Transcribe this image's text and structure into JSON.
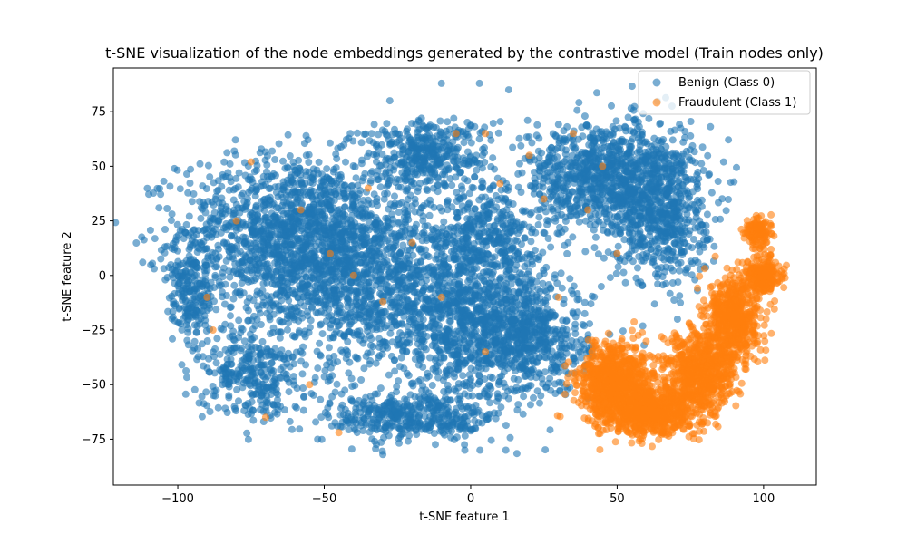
{
  "chart_data": {
    "type": "scatter",
    "title": "t-SNE visualization of the node embeddings generated by the contrastive model (Train nodes only)",
    "xlabel": "t-SNE feature 1",
    "ylabel": "t-SNE feature 2",
    "xlim": [
      -122,
      118
    ],
    "ylim": [
      -96,
      95
    ],
    "xticks": [
      -100,
      -50,
      0,
      50,
      100
    ],
    "yticks": [
      -75,
      -50,
      -25,
      0,
      25,
      50,
      75
    ],
    "grid": false,
    "legend_position": "top-right",
    "series": [
      {
        "name": "Benign (Class 0)",
        "color": "#1f77b4",
        "alpha": 0.6,
        "clusters": [
          {
            "cx": -60,
            "cy": 20,
            "sx": 28,
            "sy": 25,
            "n": 1400
          },
          {
            "cx": -35,
            "cy": -5,
            "sx": 30,
            "sy": 30,
            "n": 1100
          },
          {
            "cx": 0,
            "cy": -20,
            "sx": 22,
            "sy": 25,
            "n": 900
          },
          {
            "cx": 20,
            "cy": -30,
            "sx": 15,
            "sy": 18,
            "n": 500
          },
          {
            "cx": 45,
            "cy": 45,
            "sx": 20,
            "sy": 18,
            "n": 900
          },
          {
            "cx": 65,
            "cy": 30,
            "sx": 12,
            "sy": 25,
            "n": 600
          },
          {
            "cx": -15,
            "cy": 55,
            "sx": 15,
            "sy": 12,
            "n": 400
          },
          {
            "cx": -20,
            "cy": -65,
            "sx": 20,
            "sy": 8,
            "n": 400
          },
          {
            "cx": -75,
            "cy": -45,
            "sx": 12,
            "sy": 15,
            "n": 300
          },
          {
            "cx": -95,
            "cy": -10,
            "sx": 6,
            "sy": 15,
            "n": 200
          },
          {
            "cx": 5,
            "cy": 20,
            "sx": 12,
            "sy": 15,
            "n": 300
          }
        ],
        "outliers": [
          [
            -112,
            6
          ],
          [
            -10,
            88
          ],
          [
            3,
            88
          ],
          [
            13,
            85
          ],
          [
            -2,
            -80
          ],
          [
            12,
            -80
          ],
          [
            -30,
            -82
          ]
        ]
      },
      {
        "name": "Fraudulent (Class 1)",
        "color": "#ff7f0e",
        "alpha": 0.6,
        "clusters": [
          {
            "cx": 50,
            "cy": -50,
            "sx": 9,
            "sy": 13,
            "n": 900
          },
          {
            "cx": 62,
            "cy": -63,
            "sx": 9,
            "sy": 7,
            "n": 600
          },
          {
            "cx": 78,
            "cy": -45,
            "sx": 8,
            "sy": 14,
            "n": 700
          },
          {
            "cx": 90,
            "cy": -20,
            "sx": 6,
            "sy": 14,
            "n": 600
          },
          {
            "cx": 100,
            "cy": 0,
            "sx": 4,
            "sy": 6,
            "n": 250
          },
          {
            "cx": 98,
            "cy": 20,
            "sx": 3,
            "sy": 5,
            "n": 120
          }
        ],
        "outliers": [
          [
            -90,
            -10
          ],
          [
            -80,
            25
          ],
          [
            -58,
            30
          ],
          [
            -48,
            10
          ],
          [
            -35,
            40
          ],
          [
            -20,
            15
          ],
          [
            -10,
            -10
          ],
          [
            5,
            -35
          ],
          [
            25,
            35
          ],
          [
            35,
            65
          ],
          [
            45,
            50
          ],
          [
            30,
            -10
          ],
          [
            -5,
            65
          ],
          [
            -75,
            52
          ],
          [
            -55,
            -50
          ],
          [
            -45,
            -72
          ],
          [
            -70,
            -65
          ],
          [
            5,
            65
          ],
          [
            20,
            55
          ],
          [
            40,
            30
          ],
          [
            -40,
            0
          ],
          [
            -30,
            -12
          ],
          [
            -88,
            -25
          ],
          [
            10,
            42
          ],
          [
            50,
            10
          ]
        ]
      }
    ]
  }
}
